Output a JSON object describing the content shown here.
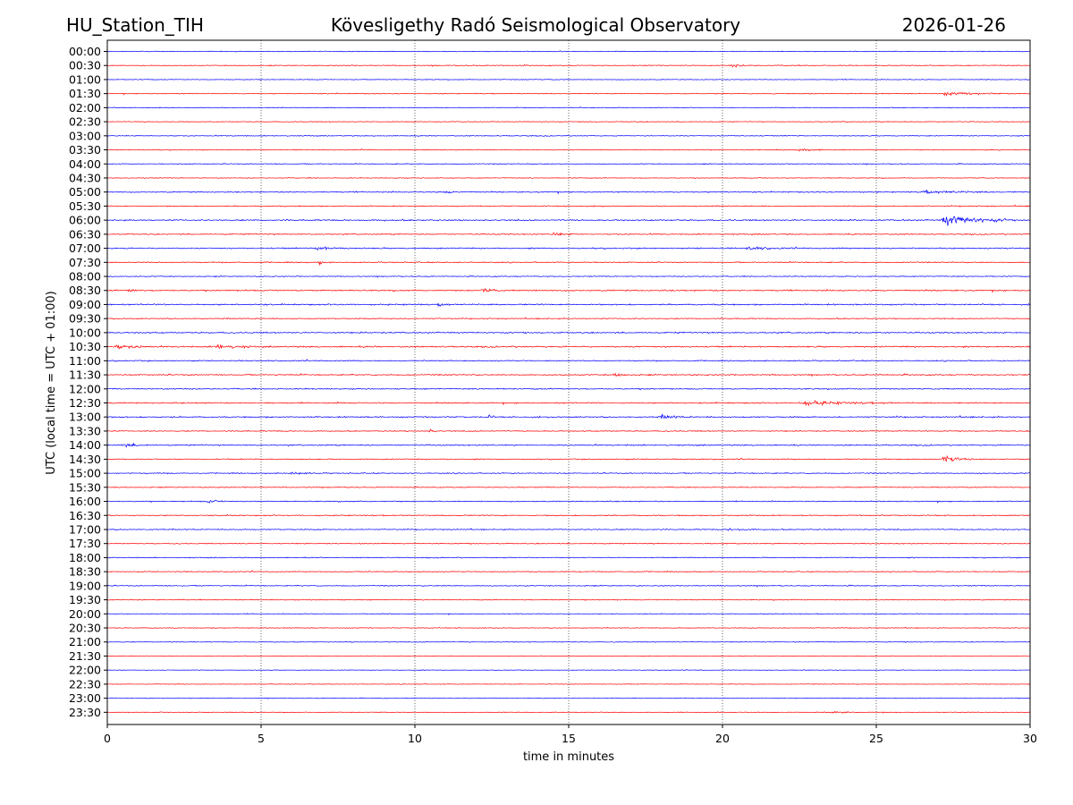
{
  "chart_data": {
    "type": "line",
    "title_left": "HU_Station_TIH",
    "title_center": "Kövesligethy Radó Seismological Observatory",
    "title_right": "2026-01-26",
    "xlabel": "time in minutes",
    "ylabel": "UTC (local time = UTC + 01:00)",
    "xlim": [
      0,
      30
    ],
    "xticks": [
      0,
      5,
      10,
      15,
      20,
      25,
      30
    ],
    "xtick_labels": [
      "0",
      "5",
      "10",
      "15",
      "20",
      "25",
      "30"
    ],
    "grid_x": true,
    "colors": {
      "even": "#0000ff",
      "odd": "#ff0000"
    },
    "rows": [
      "00:00",
      "00:30",
      "01:00",
      "01:30",
      "02:00",
      "02:30",
      "03:00",
      "03:30",
      "04:00",
      "04:30",
      "05:00",
      "05:30",
      "06:00",
      "06:30",
      "07:00",
      "07:30",
      "08:00",
      "08:30",
      "09:00",
      "09:30",
      "10:00",
      "10:30",
      "11:00",
      "11:30",
      "12:00",
      "12:30",
      "13:00",
      "13:30",
      "14:00",
      "14:30",
      "15:00",
      "15:30",
      "16:00",
      "16:30",
      "17:00",
      "17:30",
      "18:00",
      "18:30",
      "19:00",
      "19:30",
      "20:00",
      "20:30",
      "21:00",
      "21:30",
      "22:00",
      "22:30",
      "23:00",
      "23:30"
    ],
    "noise_level": [
      0.4,
      0.45,
      0.4,
      0.45,
      0.4,
      0.4,
      0.45,
      0.45,
      0.45,
      0.4,
      0.6,
      0.55,
      0.7,
      0.6,
      0.65,
      0.55,
      0.5,
      0.7,
      0.7,
      0.55,
      0.7,
      0.75,
      0.6,
      0.65,
      0.6,
      0.65,
      0.7,
      0.55,
      0.65,
      0.55,
      0.55,
      0.45,
      0.55,
      0.55,
      0.55,
      0.5,
      0.5,
      0.5,
      0.5,
      0.5,
      0.4,
      0.4,
      0.4,
      0.35,
      0.3,
      0.3,
      0.35,
      0.35
    ],
    "events": [
      {
        "row": 1,
        "minute": 20.3,
        "amp": 1.6,
        "dur": 0.6
      },
      {
        "row": 3,
        "minute": 27.2,
        "amp": 1.2,
        "dur": 2.5
      },
      {
        "row": 7,
        "minute": 22.5,
        "amp": 0.9,
        "dur": 1.0
      },
      {
        "row": 10,
        "minute": 11.0,
        "amp": 1.3,
        "dur": 0.5
      },
      {
        "row": 10,
        "minute": 26.5,
        "amp": 1.1,
        "dur": 2.5
      },
      {
        "row": 12,
        "minute": 27.2,
        "amp": 5.0,
        "dur": 2.2
      },
      {
        "row": 13,
        "minute": 14.5,
        "amp": 1.5,
        "dur": 0.8
      },
      {
        "row": 14,
        "minute": 6.8,
        "amp": 1.5,
        "dur": 1.2
      },
      {
        "row": 14,
        "minute": 20.8,
        "amp": 1.2,
        "dur": 1.5
      },
      {
        "row": 15,
        "minute": 6.9,
        "amp": 2.0,
        "dur": 0.2
      },
      {
        "row": 17,
        "minute": 0.7,
        "amp": 1.6,
        "dur": 0.5
      },
      {
        "row": 17,
        "minute": 12.2,
        "amp": 1.3,
        "dur": 0.8
      },
      {
        "row": 18,
        "minute": 10.8,
        "amp": 1.4,
        "dur": 0.4
      },
      {
        "row": 21,
        "minute": 0.3,
        "amp": 2.0,
        "dur": 1.0
      },
      {
        "row": 21,
        "minute": 3.5,
        "amp": 2.2,
        "dur": 1.2
      },
      {
        "row": 23,
        "minute": 16.5,
        "amp": 1.5,
        "dur": 0.6
      },
      {
        "row": 25,
        "minute": 22.5,
        "amp": 1.8,
        "dur": 3.0
      },
      {
        "row": 26,
        "minute": 12.4,
        "amp": 2.4,
        "dur": 0.2
      },
      {
        "row": 26,
        "minute": 18.0,
        "amp": 1.5,
        "dur": 1.0
      },
      {
        "row": 27,
        "minute": 10.5,
        "amp": 1.5,
        "dur": 0.3
      },
      {
        "row": 28,
        "minute": 0.5,
        "amp": 1.5,
        "dur": 1.0
      },
      {
        "row": 29,
        "minute": 27.2,
        "amp": 2.8,
        "dur": 1.0
      },
      {
        "row": 30,
        "minute": 6.0,
        "amp": 1.2,
        "dur": 0.8
      },
      {
        "row": 32,
        "minute": 3.3,
        "amp": 1.3,
        "dur": 0.6
      },
      {
        "row": 34,
        "minute": 20.2,
        "amp": 1.1,
        "dur": 1.0
      },
      {
        "row": 47,
        "minute": 23.5,
        "amp": 1.3,
        "dur": 0.8
      }
    ]
  }
}
